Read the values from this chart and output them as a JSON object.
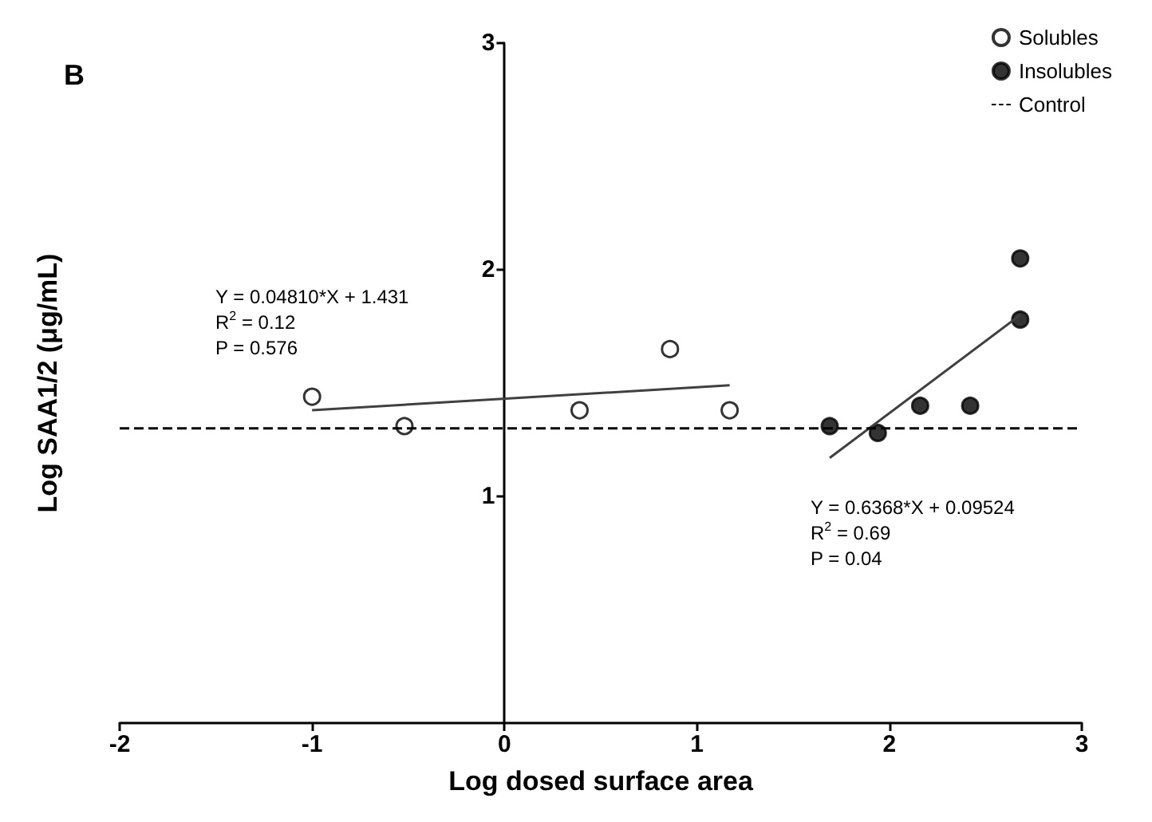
{
  "chart_data": {
    "type": "scatter",
    "xlabel": "Log dosed surface area",
    "ylabel": "Log SAA1/2 (μg/mL)",
    "xlim": [
      -2,
      3
    ],
    "xticks": [
      -2,
      -1,
      0,
      1,
      2,
      3
    ],
    "ylim": [
      0,
      3
    ],
    "yticks": [
      1,
      2,
      3
    ],
    "marker": "circle",
    "legend": "top right",
    "grid": false,
    "series": [
      {
        "name": "Solubles",
        "color": "#ffffff",
        "x": [
          -1.0,
          -0.52,
          0.39,
          0.86,
          1.17
        ],
        "values": [
          1.44,
          1.31,
          1.38,
          1.65,
          1.38
        ]
      },
      {
        "name": "Insolubles",
        "color": "#000000",
        "x": [
          1.69,
          1.94,
          2.16,
          2.42,
          2.68,
          2.68
        ],
        "values": [
          1.31,
          1.28,
          1.4,
          1.4,
          1.78,
          2.05
        ]
      },
      {
        "type": "line",
        "marker": "none",
        "color": "#404040",
        "x": [
          -1.0,
          1.17
        ],
        "values": [
          1.38,
          1.49
        ]
      },
      {
        "type": "line",
        "marker": "none",
        "color": "#404040",
        "x": [
          1.69,
          2.68
        ],
        "values": [
          1.17,
          1.8
        ]
      }
    ],
    "ref_lines": [
      {
        "axis": "y",
        "value": 1.3,
        "label": "Control",
        "line_style": "dashed",
        "color": "#000000"
      }
    ],
    "annotations": [
      "B",
      "Y = 0.04810*X + 1.431\nR$^{2}$ = 0.12\nP = 0.576",
      "Y = 0.6368*X + 0.09524\nR$^{2}$ = 0.69\nP = 0.04"
    ]
  }
}
